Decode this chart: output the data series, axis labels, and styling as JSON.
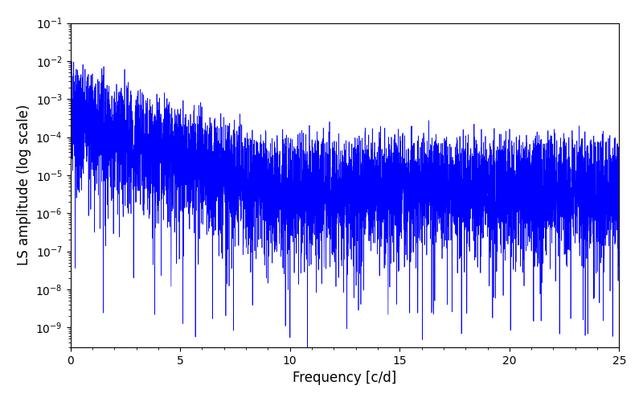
{
  "title": "",
  "xlabel": "Frequency [c/d]",
  "ylabel": "LS amplitude (log scale)",
  "xlim": [
    0,
    25
  ],
  "ylim_low": 3e-10,
  "ylim_high": 0.1,
  "line_color": "#0000FF",
  "line_width": 0.5,
  "background_color": "#ffffff",
  "freq_max": 25.0,
  "n_points": 3000,
  "seed": 12345,
  "figsize": [
    8.0,
    5.0
  ],
  "dpi": 100
}
